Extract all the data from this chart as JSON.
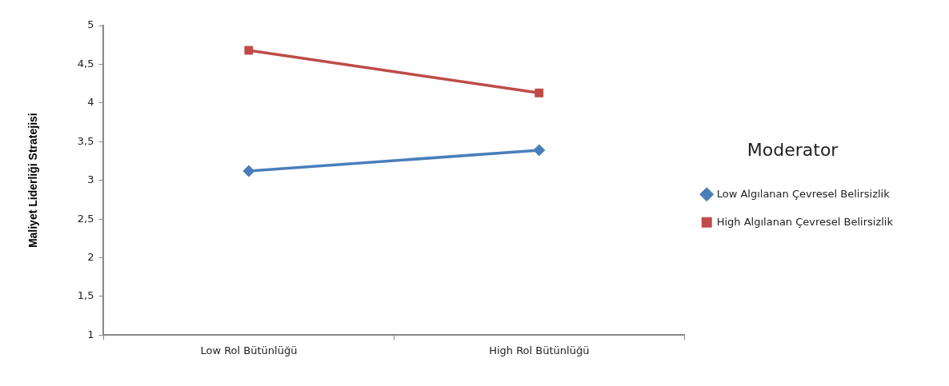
{
  "chart_data": {
    "type": "line",
    "ylabel": "Maliyet Liderliği Stratejisi",
    "legend_title": "Moderator",
    "categories": [
      "Low Rol Bütünlüğü",
      "High Rol Bütünlüğü"
    ],
    "series": [
      {
        "name": "Low Algılanan Çevresel Belirsizlik",
        "color": "#4a7ebb",
        "marker": "diamond",
        "values": [
          3.12,
          3.39
        ]
      },
      {
        "name": "High Algılanan Çevresel Belirsizlik",
        "color": "#be4b48",
        "marker": "square",
        "values": [
          4.68,
          4.13
        ]
      }
    ],
    "ylim": [
      1,
      5
    ],
    "yticks": [
      {
        "value": 1,
        "label": "1"
      },
      {
        "value": 1.5,
        "label": "1,5"
      },
      {
        "value": 2,
        "label": "2"
      },
      {
        "value": 2.5,
        "label": "2,5"
      },
      {
        "value": 3,
        "label": "3"
      },
      {
        "value": 3.5,
        "label": "3,5"
      },
      {
        "value": 4,
        "label": "4"
      },
      {
        "value": 4.5,
        "label": "4,5"
      },
      {
        "value": 5,
        "label": "5"
      }
    ],
    "grid": false,
    "legend": "right"
  }
}
